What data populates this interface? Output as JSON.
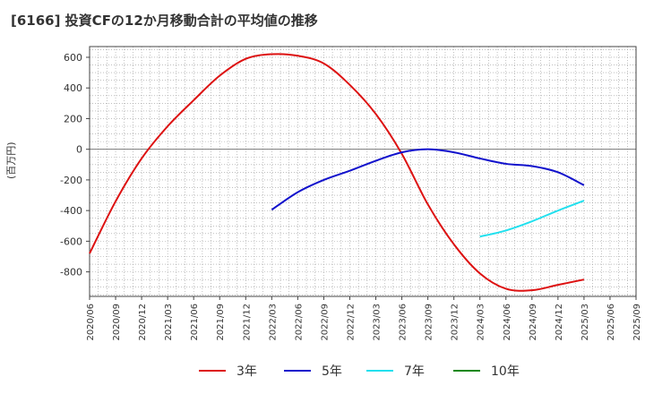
{
  "chart_data": {
    "type": "line",
    "title": "[6166]  投資CFの12か月移動合計の平均値の推移",
    "ylabel": "(百万円)",
    "xlabel": "",
    "ylim": [
      -960,
      670
    ],
    "yticks": [
      600,
      400,
      200,
      0,
      -200,
      -400,
      -600,
      -800
    ],
    "xlim": [
      "2020-06",
      "2025-09"
    ],
    "xticks": [
      "2020/06",
      "2020/09",
      "2020/12",
      "2021/03",
      "2021/06",
      "2021/09",
      "2021/12",
      "2022/03",
      "2022/06",
      "2022/09",
      "2022/12",
      "2023/03",
      "2023/06",
      "2023/09",
      "2023/12",
      "2024/03",
      "2024/06",
      "2024/09",
      "2024/12",
      "2025/03",
      "2025/06",
      "2025/09"
    ],
    "grid": true,
    "legend_position": "bottom",
    "series": [
      {
        "name": "3年",
        "color": "#dd1111",
        "points": [
          [
            "2020-06",
            -680
          ],
          [
            "2020-09",
            -340
          ],
          [
            "2020-12",
            -60
          ],
          [
            "2021-03",
            150
          ],
          [
            "2021-06",
            320
          ],
          [
            "2021-09",
            480
          ],
          [
            "2021-12",
            590
          ],
          [
            "2022-03",
            620
          ],
          [
            "2022-06",
            610
          ],
          [
            "2022-09",
            560
          ],
          [
            "2022-12",
            420
          ],
          [
            "2023-03",
            230
          ],
          [
            "2023-06",
            -30
          ],
          [
            "2023-09",
            -360
          ],
          [
            "2023-12",
            -620
          ],
          [
            "2024-03",
            -810
          ],
          [
            "2024-06",
            -910
          ],
          [
            "2024-09",
            -920
          ],
          [
            "2024-12",
            -885
          ],
          [
            "2025-03",
            -850
          ]
        ]
      },
      {
        "name": "5年",
        "color": "#1111cc",
        "points": [
          [
            "2022-03",
            -395
          ],
          [
            "2022-06",
            -280
          ],
          [
            "2022-09",
            -200
          ],
          [
            "2022-12",
            -140
          ],
          [
            "2023-03",
            -75
          ],
          [
            "2023-06",
            -20
          ],
          [
            "2023-09",
            0
          ],
          [
            "2023-12",
            -20
          ],
          [
            "2024-03",
            -60
          ],
          [
            "2024-06",
            -95
          ],
          [
            "2024-09",
            -110
          ],
          [
            "2024-12",
            -150
          ],
          [
            "2025-03",
            -235
          ]
        ]
      },
      {
        "name": "7年",
        "color": "#22e0ee",
        "points": [
          [
            "2024-03",
            -570
          ],
          [
            "2024-06",
            -530
          ],
          [
            "2024-09",
            -470
          ],
          [
            "2024-12",
            -400
          ],
          [
            "2025-03",
            -335
          ]
        ]
      },
      {
        "name": "10年",
        "color": "#118811",
        "points": []
      }
    ]
  }
}
